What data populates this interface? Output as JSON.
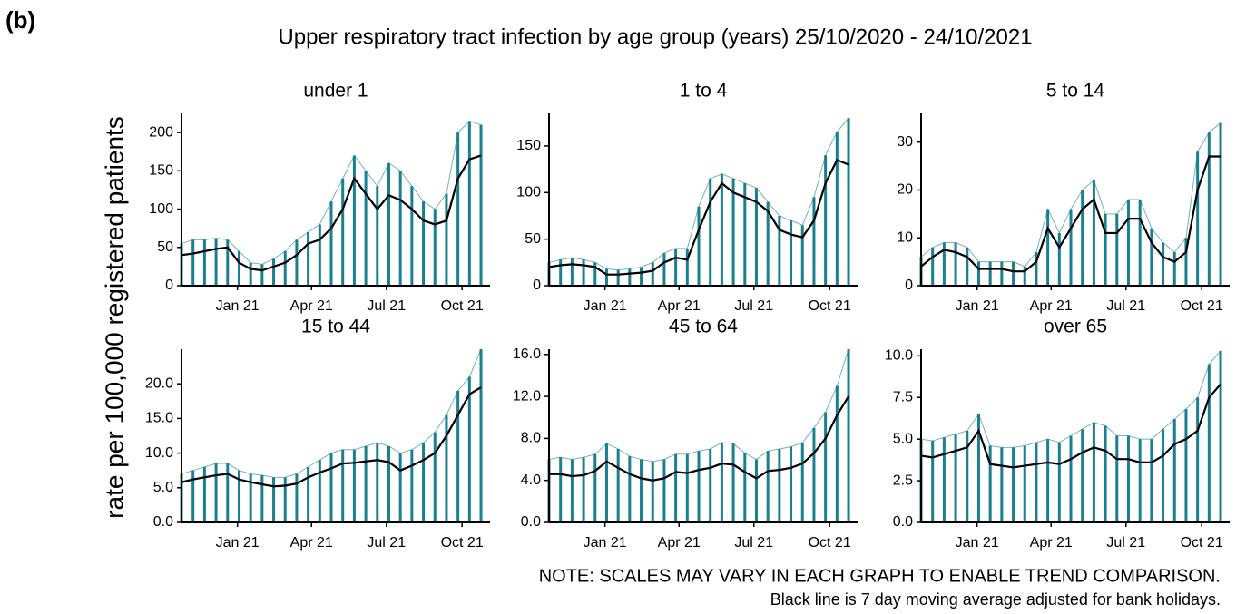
{
  "figure": {
    "label": "(b)",
    "title": "Upper respiratory tract infection by age group (years) 25/10/2020 - 24/10/2021",
    "ylabel": "rate per 100,000 registered patients",
    "notes": [
      "NOTE: SCALES MAY VARY IN EACH GRAPH TO ENABLE TREND COMPARISON.",
      "Black line is 7 day moving average adjusted for bank holidays."
    ]
  },
  "chart_data": [
    {
      "type": "line",
      "title": "under 1",
      "x": [
        0,
        14,
        28,
        42,
        56,
        70,
        84,
        98,
        112,
        126,
        140,
        154,
        168,
        182,
        196,
        210,
        224,
        238,
        252,
        266,
        280,
        294,
        308,
        322,
        336,
        350,
        364
      ],
      "xlim": [
        0,
        375
      ],
      "xticks": [
        {
          "value": 68,
          "label": "Jan 21"
        },
        {
          "value": 158,
          "label": "Apr 21"
        },
        {
          "value": 249,
          "label": "Jul 21"
        },
        {
          "value": 341,
          "label": "Oct 21"
        }
      ],
      "ylim": [
        0,
        225
      ],
      "yticks": [
        0,
        50,
        100,
        150,
        200
      ],
      "series": [
        {
          "color": "#1a7f8e",
          "style": "spikes",
          "values": [
            55,
            60,
            60,
            62,
            60,
            45,
            30,
            28,
            35,
            45,
            60,
            70,
            80,
            110,
            140,
            170,
            150,
            130,
            160,
            150,
            130,
            110,
            100,
            120,
            200,
            215,
            210
          ]
        },
        {
          "color": "#000000",
          "style": "line",
          "values": [
            40,
            42,
            45,
            48,
            50,
            30,
            22,
            20,
            25,
            30,
            40,
            55,
            60,
            75,
            100,
            140,
            120,
            100,
            118,
            112,
            100,
            85,
            80,
            85,
            140,
            165,
            170
          ]
        }
      ]
    },
    {
      "type": "line",
      "title": "1 to 4",
      "x": [
        0,
        14,
        28,
        42,
        56,
        70,
        84,
        98,
        112,
        126,
        140,
        154,
        168,
        182,
        196,
        210,
        224,
        238,
        252,
        266,
        280,
        294,
        308,
        322,
        336,
        350,
        364
      ],
      "xlim": [
        0,
        375
      ],
      "xticks": [
        {
          "value": 68,
          "label": "Jan 21"
        },
        {
          "value": 158,
          "label": "Apr 21"
        },
        {
          "value": 249,
          "label": "Jul 21"
        },
        {
          "value": 341,
          "label": "Oct 21"
        }
      ],
      "ylim": [
        0,
        185
      ],
      "yticks": [
        0,
        50,
        100,
        150
      ],
      "series": [
        {
          "color": "#1a7f8e",
          "style": "spikes",
          "values": [
            25,
            28,
            30,
            28,
            25,
            18,
            17,
            18,
            20,
            25,
            35,
            40,
            40,
            85,
            115,
            120,
            115,
            110,
            105,
            90,
            75,
            70,
            65,
            95,
            140,
            165,
            180
          ]
        },
        {
          "color": "#000000",
          "style": "line",
          "values": [
            20,
            22,
            23,
            22,
            20,
            12,
            12,
            13,
            14,
            16,
            25,
            30,
            28,
            60,
            90,
            110,
            100,
            95,
            90,
            80,
            60,
            55,
            52,
            70,
            110,
            135,
            130
          ]
        }
      ]
    },
    {
      "type": "line",
      "title": "5 to 14",
      "x": [
        0,
        14,
        28,
        42,
        56,
        70,
        84,
        98,
        112,
        126,
        140,
        154,
        168,
        182,
        196,
        210,
        224,
        238,
        252,
        266,
        280,
        294,
        308,
        322,
        336,
        350,
        364
      ],
      "xlim": [
        0,
        375
      ],
      "xticks": [
        {
          "value": 68,
          "label": "Jan 21"
        },
        {
          "value": 158,
          "label": "Apr 21"
        },
        {
          "value": 249,
          "label": "Jul 21"
        },
        {
          "value": 341,
          "label": "Oct 21"
        }
      ],
      "ylim": [
        0,
        36
      ],
      "yticks": [
        0,
        10,
        20,
        30
      ],
      "series": [
        {
          "color": "#1a7f8e",
          "style": "spikes",
          "values": [
            6,
            8,
            9,
            9,
            8,
            5,
            5,
            5,
            5,
            4,
            7,
            16,
            11,
            16,
            20,
            22,
            15,
            15,
            18,
            18,
            12,
            9,
            7,
            10,
            28,
            32,
            34
          ]
        },
        {
          "color": "#000000",
          "style": "line",
          "values": [
            4,
            6,
            7.5,
            7,
            6,
            3.5,
            3.5,
            3.5,
            3,
            3,
            5,
            12,
            8,
            12,
            16,
            18,
            11,
            11,
            14,
            14,
            9,
            6,
            5,
            7,
            20,
            27,
            27
          ]
        }
      ]
    },
    {
      "type": "line",
      "title": "15 to 44",
      "x": [
        0,
        14,
        28,
        42,
        56,
        70,
        84,
        98,
        112,
        126,
        140,
        154,
        168,
        182,
        196,
        210,
        224,
        238,
        252,
        266,
        280,
        294,
        308,
        322,
        336,
        350,
        364
      ],
      "xlim": [
        0,
        375
      ],
      "xticks": [
        {
          "value": 68,
          "label": "Jan 21"
        },
        {
          "value": 158,
          "label": "Apr 21"
        },
        {
          "value": 249,
          "label": "Jul 21"
        },
        {
          "value": 341,
          "label": "Oct 21"
        }
      ],
      "ylim": [
        0,
        25
      ],
      "yticks": [
        {
          "value": 0,
          "label": "0.0"
        },
        {
          "value": 5,
          "label": "5.0"
        },
        {
          "value": 10,
          "label": "10.0"
        },
        {
          "value": 15,
          "label": "15.0"
        },
        {
          "value": 20,
          "label": "20.0"
        }
      ],
      "series": [
        {
          "color": "#1a7f8e",
          "style": "spikes",
          "values": [
            7,
            7.5,
            8,
            8.5,
            8.5,
            7.5,
            7,
            6.8,
            6.5,
            6.5,
            7,
            8,
            9,
            10,
            10.5,
            10.5,
            11,
            11.5,
            11,
            10,
            10.5,
            11.5,
            13,
            15.5,
            19,
            21,
            25
          ]
        },
        {
          "color": "#000000",
          "style": "line",
          "values": [
            5.8,
            6.2,
            6.5,
            6.8,
            7,
            6.2,
            5.8,
            5.5,
            5.2,
            5.3,
            5.6,
            6.5,
            7.2,
            7.8,
            8.5,
            8.6,
            8.8,
            9,
            8.7,
            7.5,
            8.2,
            9,
            10,
            12.5,
            15.5,
            18.5,
            19.5
          ]
        }
      ]
    },
    {
      "type": "line",
      "title": "45 to 64",
      "x": [
        0,
        14,
        28,
        42,
        56,
        70,
        84,
        98,
        112,
        126,
        140,
        154,
        168,
        182,
        196,
        210,
        224,
        238,
        252,
        266,
        280,
        294,
        308,
        322,
        336,
        350,
        364
      ],
      "xlim": [
        0,
        375
      ],
      "xticks": [
        {
          "value": 68,
          "label": "Jan 21"
        },
        {
          "value": 158,
          "label": "Apr 21"
        },
        {
          "value": 249,
          "label": "Jul 21"
        },
        {
          "value": 341,
          "label": "Oct 21"
        }
      ],
      "ylim": [
        0,
        16.5
      ],
      "yticks": [
        {
          "value": 0,
          "label": "0.0"
        },
        {
          "value": 4,
          "label": "4.0"
        },
        {
          "value": 8,
          "label": "8.0"
        },
        {
          "value": 12,
          "label": "12.0"
        },
        {
          "value": 16,
          "label": "16.0"
        }
      ],
      "series": [
        {
          "color": "#1a7f8e",
          "style": "spikes",
          "values": [
            6,
            6.2,
            6,
            6.2,
            6.5,
            7.5,
            7,
            6.3,
            6,
            5.8,
            6,
            6.5,
            6.5,
            6.8,
            7,
            7.6,
            7.5,
            6.6,
            6,
            6.8,
            7,
            7.2,
            7.6,
            9,
            10.5,
            13,
            16.5
          ]
        },
        {
          "color": "#000000",
          "style": "line",
          "values": [
            4.6,
            4.6,
            4.4,
            4.5,
            4.9,
            5.8,
            5.2,
            4.6,
            4.2,
            4,
            4.2,
            4.8,
            4.7,
            5,
            5.2,
            5.6,
            5.5,
            4.8,
            4.2,
            4.9,
            5,
            5.2,
            5.6,
            6.6,
            8,
            10.2,
            12
          ]
        }
      ]
    },
    {
      "type": "line",
      "title": "over 65",
      "x": [
        0,
        14,
        28,
        42,
        56,
        70,
        84,
        98,
        112,
        126,
        140,
        154,
        168,
        182,
        196,
        210,
        224,
        238,
        252,
        266,
        280,
        294,
        308,
        322,
        336,
        350,
        364
      ],
      "xlim": [
        0,
        375
      ],
      "xticks": [
        {
          "value": 68,
          "label": "Jan 21"
        },
        {
          "value": 158,
          "label": "Apr 21"
        },
        {
          "value": 249,
          "label": "Jul 21"
        },
        {
          "value": 341,
          "label": "Oct 21"
        }
      ],
      "ylim": [
        0,
        10.4
      ],
      "yticks": [
        {
          "value": 0,
          "label": "0.0"
        },
        2.5,
        {
          "value": 5,
          "label": "5.0"
        },
        7.5,
        {
          "value": 10,
          "label": "10.0"
        }
      ],
      "series": [
        {
          "color": "#1a7f8e",
          "style": "spikes",
          "values": [
            5,
            4.9,
            5.1,
            5.3,
            5.5,
            6.5,
            4.6,
            4.5,
            4.5,
            4.6,
            4.8,
            5,
            4.8,
            5.2,
            5.6,
            6,
            5.8,
            5.2,
            5.2,
            5,
            5,
            5.6,
            6.2,
            6.8,
            7.5,
            9.5,
            10.3
          ]
        },
        {
          "color": "#000000",
          "style": "line",
          "values": [
            4,
            3.9,
            4.1,
            4.3,
            4.5,
            5.5,
            3.5,
            3.4,
            3.3,
            3.4,
            3.5,
            3.6,
            3.5,
            3.8,
            4.2,
            4.5,
            4.3,
            3.8,
            3.8,
            3.6,
            3.6,
            4,
            4.7,
            5,
            5.5,
            7.5,
            8.3
          ]
        }
      ]
    }
  ]
}
